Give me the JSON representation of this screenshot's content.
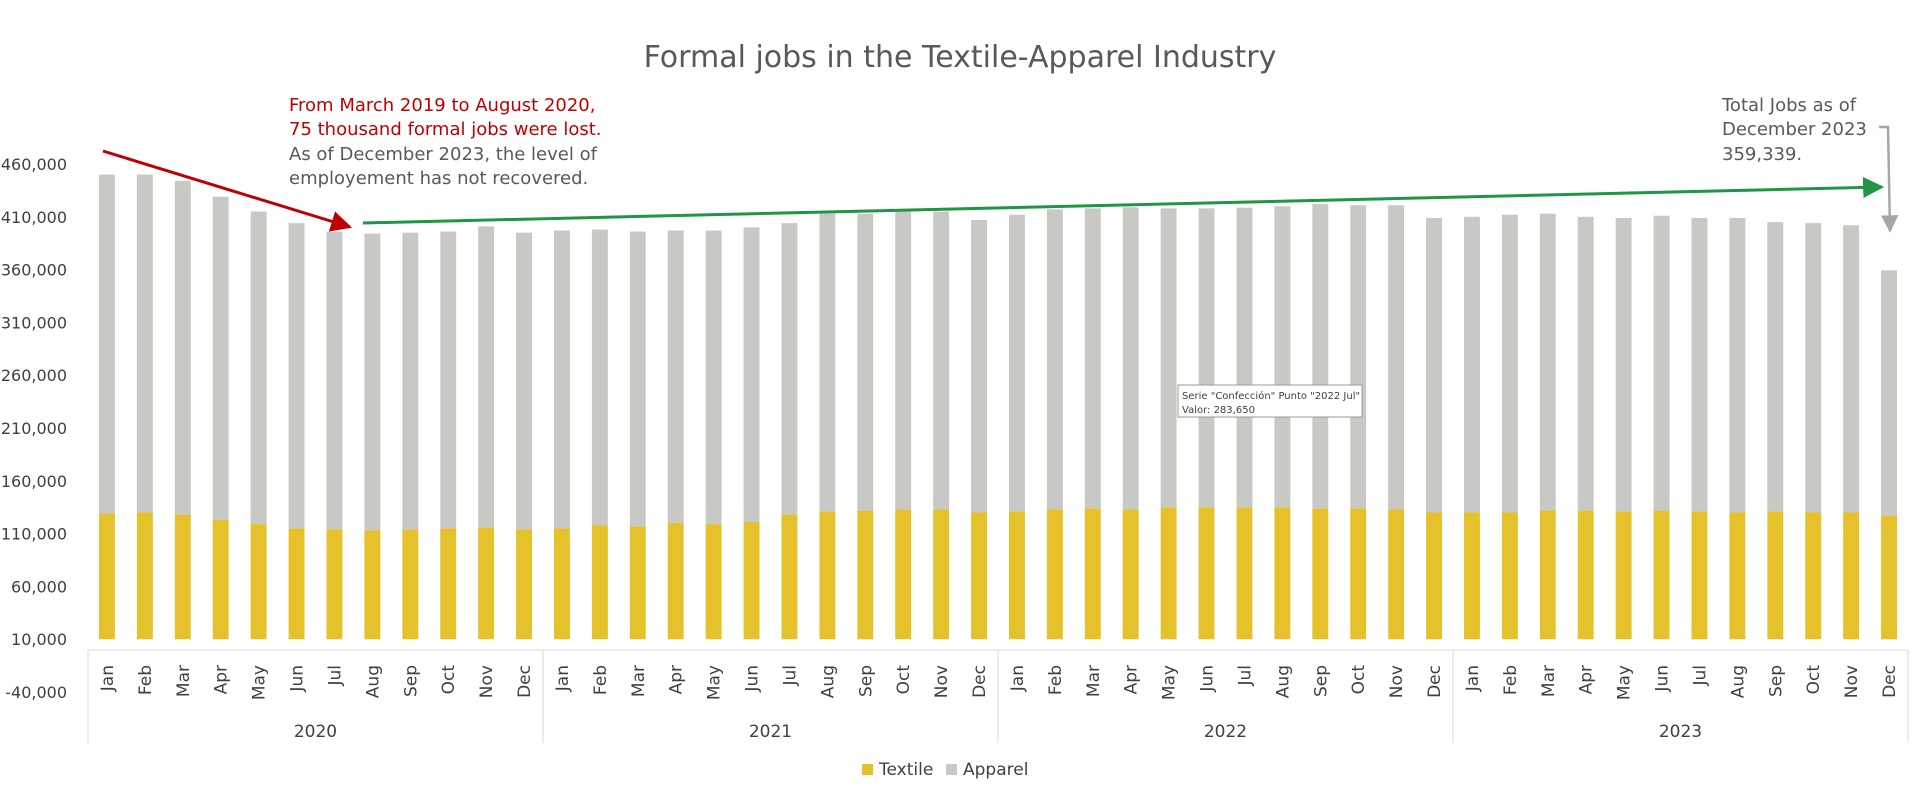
{
  "chart_data": {
    "type": "bar",
    "stacked": true,
    "title": "Formal jobs in the Textile-Apparel Industry",
    "years": [
      "2020",
      "2021",
      "2022",
      "2023"
    ],
    "months": [
      "Jan",
      "Feb",
      "Mar",
      "Apr",
      "May",
      "Jun",
      "Jul",
      "Aug",
      "Sep",
      "Oct",
      "Nov",
      "Dec"
    ],
    "y_ticks": [
      "460,000",
      "410,000",
      "360,000",
      "310,000",
      "260,000",
      "210,000",
      "160,000",
      "110,000",
      "60,000",
      "10,000",
      "-40,000"
    ],
    "ylim": [
      -40000,
      460000
    ],
    "legend_position": "bottom",
    "series": [
      {
        "name": "Textile",
        "color": "#e5c12c",
        "values": [
          129000,
          130000,
          128000,
          123000,
          119000,
          115000,
          114000,
          113000,
          114000,
          115000,
          116000,
          114000,
          115000,
          118000,
          117000,
          120000,
          119000,
          121000,
          128000,
          131000,
          132000,
          133000,
          133000,
          130000,
          131000,
          133000,
          134000,
          133000,
          135000,
          135000,
          135000,
          135000,
          134000,
          134000,
          133000,
          130000,
          130000,
          130000,
          132000,
          132000,
          131000,
          132000,
          131000,
          130000,
          131000,
          130000,
          130000,
          127000
        ]
      },
      {
        "name": "Apparel",
        "color": "#c8c8c4",
        "values": [
          321000,
          320000,
          316000,
          306000,
          296000,
          289000,
          282000,
          281000,
          281000,
          281000,
          285000,
          281000,
          282000,
          280000,
          279000,
          277000,
          278000,
          279000,
          276000,
          282000,
          281000,
          282000,
          282000,
          277000,
          281000,
          284000,
          284000,
          286000,
          283000,
          283000,
          283650,
          285000,
          288000,
          287000,
          288000,
          279000,
          280000,
          282000,
          281000,
          278000,
          278000,
          279000,
          278000,
          279000,
          274000,
          274000,
          272000,
          232339
        ]
      }
    ],
    "annotations": {
      "decline": [
        "From March 2019 to August 2020,",
        "75 thousand formal jobs were lost.",
        "As of December 2023, the level of",
        "employement has not recovered."
      ],
      "total": [
        "Total Jobs as of",
        "December 2023",
        "359,339."
      ]
    },
    "tooltip": {
      "line1": "Serie \"Confección\" Punto \"2022 Jul\"",
      "line2": "Valor:  283,650"
    },
    "colors": {
      "decline_arrow": "#c00000",
      "trend_arrow": "#1e9645",
      "total_arrow": "#a6a6a6"
    }
  }
}
